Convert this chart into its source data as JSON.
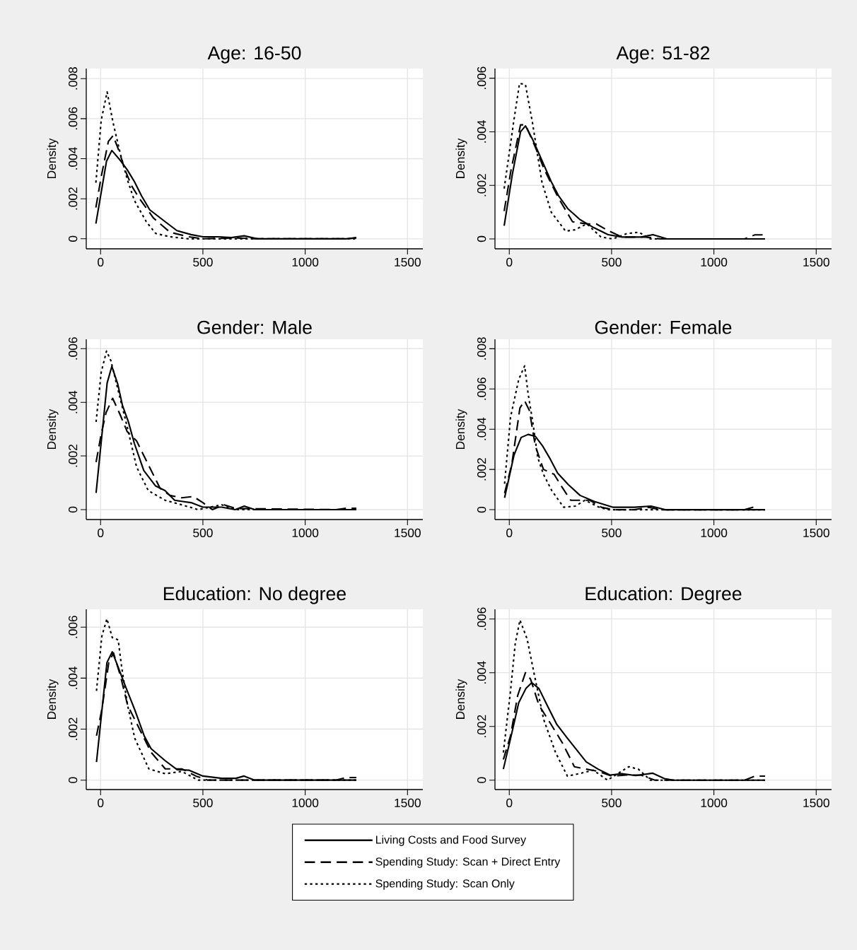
{
  "chart_data": [
    {
      "type": "line",
      "title": "Age: 16-50",
      "ylabel": "Density",
      "xlim": [
        -70,
        1575
      ],
      "ylim": [
        -0.0005,
        0.0085
      ],
      "xticks": [
        0,
        500,
        1000,
        1500
      ],
      "yticks": [
        {
          "value": 0,
          "label": "0"
        },
        {
          "value": 0.002,
          "label": ".002"
        },
        {
          "value": 0.004,
          "label": ".004"
        },
        {
          "value": 0.006,
          "label": ".006"
        },
        {
          "value": 0.008,
          "label": ".008"
        }
      ],
      "grid": true,
      "legend": "bottom",
      "series": [
        {
          "name": "Living Costs and Food Survey",
          "color": "#000000",
          "line_style": "solid",
          "x": [
            -23,
            29,
            55,
            96,
            130,
            165,
            200,
            240,
            315,
            373,
            442,
            500,
            575,
            639,
            702,
            766,
            1200,
            1250
          ],
          "values": [
            0.00076,
            0.00388,
            0.00441,
            0.00392,
            0.00345,
            0.00286,
            0.00215,
            0.00145,
            0.00086,
            0.00041,
            0.00021,
            0.0001,
            0.0001,
            6e-05,
            0.00015,
            0,
            0,
            5e-05
          ]
        },
        {
          "name": "Spending Study: Scan + Direct Entry",
          "color": "#000000",
          "line_style": "dashed",
          "x": [
            -23,
            3,
            38,
            61,
            90,
            119,
            153,
            188,
            258,
            339,
            431,
            500,
            662,
            766,
            1200,
            1250
          ],
          "values": [
            0.00156,
            0.0031,
            0.00486,
            0.00515,
            0.00439,
            0.00345,
            0.00262,
            0.00204,
            0.00104,
            0.00033,
            0.0001,
            0,
            4e-05,
            0,
            0,
            5e-05
          ]
        },
        {
          "name": "Spending Study: Scan Only",
          "color": "#000000",
          "line_style": "dotted",
          "x": [
            -23,
            3,
            32,
            61,
            96,
            130,
            165,
            223,
            269,
            339,
            431,
            766,
            1250
          ],
          "values": [
            0.0028,
            0.00592,
            0.00733,
            0.0058,
            0.00427,
            0.00298,
            0.00192,
            0.00086,
            0.00027,
            0.0001,
            0,
            0,
            0
          ]
        }
      ]
    },
    {
      "type": "line",
      "title": "Age: 51-82",
      "ylabel": "Density",
      "xlim": [
        -70,
        1575
      ],
      "ylim": [
        -0.00037,
        0.00636
      ],
      "xticks": [
        0,
        500,
        1000,
        1500
      ],
      "yticks": [
        {
          "value": 0,
          "label": "0"
        },
        {
          "value": 0.002,
          "label": ".002"
        },
        {
          "value": 0.004,
          "label": ".004"
        },
        {
          "value": 0.006,
          "label": ".006"
        }
      ],
      "grid": true,
      "series": [
        {
          "color": "#000000",
          "line_style": "solid",
          "x": [
            -25,
            15,
            55,
            79,
            113,
            159,
            205,
            240,
            286,
            344,
            413,
            483,
            552,
            644,
            702,
            771,
            1250
          ],
          "values": [
            0.00049,
            0.00241,
            0.004,
            0.00422,
            0.00373,
            0.00294,
            0.00214,
            0.00162,
            0.00113,
            0.00073,
            0.00042,
            0.00016,
            7e-05,
            7e-05,
            0.00016,
            0,
            0
          ]
        },
        {
          "color": "#000000",
          "line_style": "dashed",
          "x": [
            -25,
            9,
            55,
            79,
            125,
            171,
            240,
            309,
            379,
            425,
            483,
            552,
            667,
            737,
            1150,
            1200,
            1250
          ],
          "values": [
            0.00104,
            0.00259,
            0.00426,
            0.00426,
            0.00347,
            0.00259,
            0.00153,
            0.00064,
            0.00056,
            0.00056,
            0.00031,
            7e-05,
            7e-05,
            0,
            0,
            0.00015,
            0.00015
          ]
        },
        {
          "color": "#000000",
          "line_style": "dotted",
          "x": [
            -25,
            21,
            50,
            79,
            113,
            159,
            205,
            275,
            321,
            379,
            448,
            506,
            575,
            633,
            690,
            1250
          ],
          "values": [
            0.00188,
            0.00435,
            0.00581,
            0.00576,
            0.00435,
            0.00214,
            0.001,
            0.00029,
            0.00034,
            0.00056,
            7e-05,
            0,
            0.0002,
            0.00025,
            0,
            0
          ]
        }
      ]
    },
    {
      "type": "line",
      "title": "Gender: Male",
      "ylabel": "Density",
      "xlim": [
        -70,
        1575
      ],
      "ylim": [
        -0.00037,
        0.00635
      ],
      "xticks": [
        0,
        500,
        1000,
        1500
      ],
      "yticks": [
        {
          "value": 0,
          "label": "0"
        },
        {
          "value": 0.002,
          "label": ".002"
        },
        {
          "value": 0.004,
          "label": ".004"
        },
        {
          "value": 0.006,
          "label": ".006"
        }
      ],
      "grid": true,
      "series": [
        {
          "color": "#000000",
          "line_style": "solid",
          "x": [
            -22,
            32,
            55,
            84,
            107,
            136,
            165,
            211,
            269,
            315,
            362,
            396,
            442,
            500,
            592,
            658,
            702,
            754,
            1250
          ],
          "values": [
            0.00062,
            0.00472,
            0.00534,
            0.00468,
            0.00388,
            0.00327,
            0.00247,
            0.00146,
            0.00088,
            0.00071,
            0.00035,
            0.00031,
            0.00026,
            9e-05,
            9e-05,
            0,
            0.00013,
            0,
            0
          ]
        },
        {
          "color": "#000000",
          "line_style": "dashed",
          "x": [
            -22,
            3,
            27,
            59,
            96,
            130,
            176,
            233,
            291,
            339,
            396,
            453,
            500,
            546,
            604,
            662,
            1150,
            1200,
            1250
          ],
          "values": [
            0.00177,
            0.00282,
            0.00362,
            0.00415,
            0.00353,
            0.00291,
            0.00256,
            0.00168,
            0.00079,
            0.00053,
            0.00044,
            0.00049,
            0.00026,
            0,
            0.00018,
            4e-05,
            0,
            5e-05,
            5e-05
          ]
        },
        {
          "color": "#000000",
          "line_style": "dotted",
          "x": [
            -22,
            3,
            29,
            50,
            84,
            130,
            176,
            233,
            315,
            396,
            477,
            592,
            662,
            1250
          ],
          "values": [
            0.00327,
            0.00512,
            0.00591,
            0.00556,
            0.0045,
            0.00309,
            0.00159,
            0.00071,
            0.00035,
            0.00018,
            0,
            0.00018,
            0,
            0
          ]
        }
      ]
    },
    {
      "type": "line",
      "title": "Gender: Female",
      "ylabel": "Density",
      "xlim": [
        -70,
        1575
      ],
      "ylim": [
        -0.00049,
        0.00847
      ],
      "xticks": [
        0,
        500,
        1000,
        1500
      ],
      "yticks": [
        {
          "value": 0,
          "label": "0"
        },
        {
          "value": 0.002,
          "label": ".002"
        },
        {
          "value": 0.004,
          "label": ".004"
        },
        {
          "value": 0.006,
          "label": ".006"
        },
        {
          "value": 0.008,
          "label": ".008"
        }
      ],
      "grid": true,
      "series": [
        {
          "color": "#000000",
          "line_style": "solid",
          "x": [
            -23,
            23,
            58,
            92,
            127,
            162,
            196,
            236,
            289,
            346,
            416,
            508,
            612,
            693,
            762,
            1250
          ],
          "values": [
            0.00059,
            0.00271,
            0.00359,
            0.00374,
            0.00365,
            0.00318,
            0.00259,
            0.00182,
            0.00124,
            0.00071,
            0.00041,
            0.00012,
            0.00012,
            0.00018,
            0,
            0
          ]
        },
        {
          "color": "#000000",
          "line_style": "dashed",
          "x": [
            -23,
            12,
            52,
            75,
            98,
            127,
            167,
            219,
            254,
            300,
            346,
            393,
            450,
            508,
            612,
            681,
            740,
            1150,
            1200
          ],
          "values": [
            0.00082,
            0.00224,
            0.00506,
            0.00541,
            0.00494,
            0.00318,
            0.002,
            0.00176,
            0.00118,
            0.00047,
            0.00047,
            0.00047,
            0.00012,
            0,
            0,
            0.00012,
            0,
            0,
            0.00015
          ]
        },
        {
          "color": "#000000",
          "line_style": "dotted",
          "x": [
            -23,
            6,
            46,
            75,
            92,
            115,
            139,
            167,
            208,
            266,
            323,
            370,
            439,
            485,
            1250
          ],
          "values": [
            0.00129,
            0.00459,
            0.00647,
            0.00715,
            0.00576,
            0.00435,
            0.00259,
            0.00176,
            0.00094,
            0.00012,
            0.00018,
            0.00047,
            0.00012,
            0,
            0
          ]
        }
      ]
    },
    {
      "type": "line",
      "title": "Education: No degree",
      "ylabel": "Density",
      "xlim": [
        -70,
        1575
      ],
      "ylim": [
        -0.00037,
        0.0067
      ],
      "xticks": [
        0,
        500,
        1000,
        1500
      ],
      "yticks": [
        {
          "value": 0,
          "label": "0"
        },
        {
          "value": 0.002,
          "label": ".002"
        },
        {
          "value": 0.004,
          "label": ".004"
        },
        {
          "value": 0.006,
          "label": ".006"
        }
      ],
      "grid": true,
      "series": [
        {
          "color": "#000000",
          "line_style": "solid",
          "x": [
            -20,
            31,
            57,
            86,
            121,
            167,
            213,
            247,
            316,
            374,
            431,
            500,
            592,
            661,
            701,
            753,
            1250
          ],
          "values": [
            0.00071,
            0.00461,
            0.00503,
            0.00443,
            0.00369,
            0.00276,
            0.00174,
            0.00123,
            0.00076,
            0.00041,
            0.00039,
            0.00016,
            7e-05,
            7e-05,
            0.00016,
            0,
            0
          ]
        },
        {
          "color": "#000000",
          "line_style": "dashed",
          "x": [
            -20,
            6,
            40,
            63,
            98,
            132,
            178,
            247,
            316,
            397,
            466,
            523,
            1150,
            1200,
            1250
          ],
          "values": [
            0.00174,
            0.00276,
            0.00461,
            0.00499,
            0.00406,
            0.00294,
            0.0022,
            0.00109,
            0.00044,
            0.00044,
            0.00016,
            0,
            0,
            0.0001,
            0.0001
          ]
        },
        {
          "color": "#000000",
          "line_style": "dotted",
          "x": [
            -20,
            6,
            31,
            57,
            86,
            103,
            132,
            167,
            236,
            316,
            397,
            477,
            1250
          ],
          "values": [
            0.0035,
            0.00564,
            0.00633,
            0.00559,
            0.0055,
            0.00443,
            0.00294,
            0.00164,
            0.00044,
            0.00025,
            0.00034,
            0,
            0
          ]
        }
      ]
    },
    {
      "type": "line",
      "title": "Education: Degree",
      "ylabel": "Density",
      "xlim": [
        -70,
        1575
      ],
      "ylim": [
        -0.00035,
        0.00636
      ],
      "xticks": [
        0,
        500,
        1000,
        1500
      ],
      "yticks": [
        {
          "value": 0,
          "label": "0"
        },
        {
          "value": 0.002,
          "label": ".002"
        },
        {
          "value": 0.004,
          "label": ".004"
        },
        {
          "value": 0.006,
          "label": ".006"
        }
      ],
      "grid": true,
      "series": [
        {
          "color": "#000000",
          "line_style": "solid",
          "x": [
            -29,
            12,
            46,
            81,
            110,
            145,
            185,
            231,
            284,
            330,
            376,
            434,
            492,
            550,
            619,
            700,
            758,
            804,
            1250
          ],
          "values": [
            0.00041,
            0.00174,
            0.00288,
            0.00341,
            0.00363,
            0.00341,
            0.00279,
            0.00209,
            0.00156,
            0.00112,
            0.00068,
            0.00041,
            0.00019,
            0.00024,
            0.00017,
            0.00026,
            6e-05,
            0,
            0
          ]
        },
        {
          "color": "#000000",
          "line_style": "dashed",
          "x": [
            -29,
            6,
            41,
            79,
            104,
            145,
            203,
            260,
            318,
            376,
            434,
            503,
            572,
            642,
            712,
            1150,
            1200,
            1250
          ],
          "values": [
            0.00077,
            0.00165,
            0.00315,
            0.004,
            0.00376,
            0.00279,
            0.00209,
            0.00138,
            0.0005,
            0.00041,
            0.00033,
            0.00015,
            0.00019,
            0.00019,
            0,
            0,
            0.00015,
            0.00015
          ]
        },
        {
          "color": "#000000",
          "line_style": "dotted",
          "x": [
            -29,
            6,
            29,
            52,
            87,
            122,
            168,
            226,
            284,
            341,
            411,
            480,
            584,
            631,
            689,
            1250
          ],
          "values": [
            0.00103,
            0.00332,
            0.00508,
            0.00596,
            0.00526,
            0.00394,
            0.00226,
            0.00103,
            0.00015,
            0.00024,
            0.00037,
            0,
            0.0005,
            0.00041,
            0,
            0
          ]
        }
      ]
    }
  ]
}
